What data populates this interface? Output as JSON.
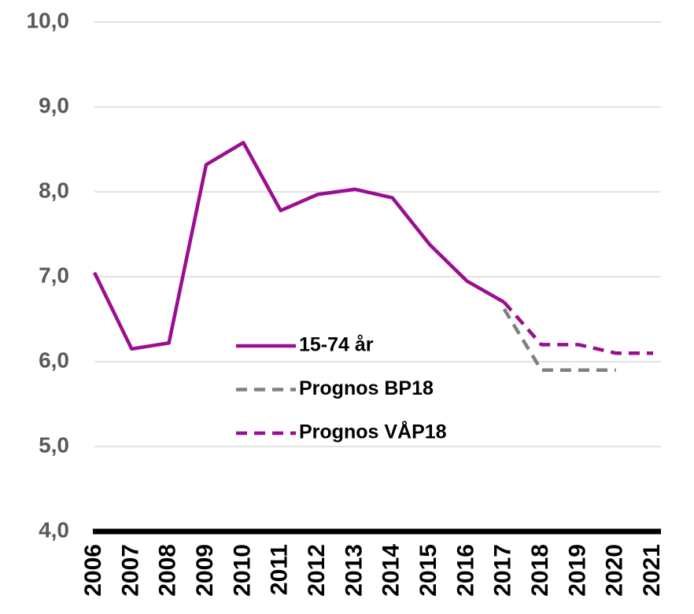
{
  "chart_data": {
    "type": "line",
    "categories": [
      "2006",
      "2007",
      "2008",
      "2009",
      "2010",
      "2011",
      "2012",
      "2013",
      "2014",
      "2015",
      "2016",
      "2017",
      "2018",
      "2019",
      "2020",
      "2021"
    ],
    "series": [
      {
        "name": "15-74 år",
        "color": "#9b0e8f",
        "style": "solid",
        "values": [
          7.05,
          6.15,
          6.22,
          8.32,
          8.58,
          7.78,
          7.97,
          8.03,
          7.93,
          7.38,
          6.95,
          6.7,
          null,
          null,
          null,
          null
        ]
      },
      {
        "name": "Prognos BP18",
        "color": "#808080",
        "style": "dashed",
        "values": [
          null,
          null,
          null,
          null,
          null,
          null,
          null,
          null,
          null,
          null,
          null,
          6.62,
          5.9,
          5.9,
          5.9,
          null
        ]
      },
      {
        "name": "Prognos VÅP18",
        "color": "#9b0e8f",
        "style": "dashed",
        "values": [
          null,
          null,
          null,
          null,
          null,
          null,
          null,
          null,
          null,
          null,
          null,
          6.7,
          6.2,
          6.2,
          6.1,
          6.1
        ]
      }
    ],
    "ylim": [
      4,
      10
    ],
    "yticks": [
      {
        "value": 4,
        "label": "4,0"
      },
      {
        "value": 5,
        "label": "5,0"
      },
      {
        "value": 6,
        "label": "6,0"
      },
      {
        "value": 7,
        "label": "7,0"
      },
      {
        "value": 8,
        "label": "8,0"
      },
      {
        "value": 9,
        "label": "9,0"
      },
      {
        "value": 10,
        "label": "10,0"
      }
    ],
    "grid": true,
    "legend": "center"
  }
}
